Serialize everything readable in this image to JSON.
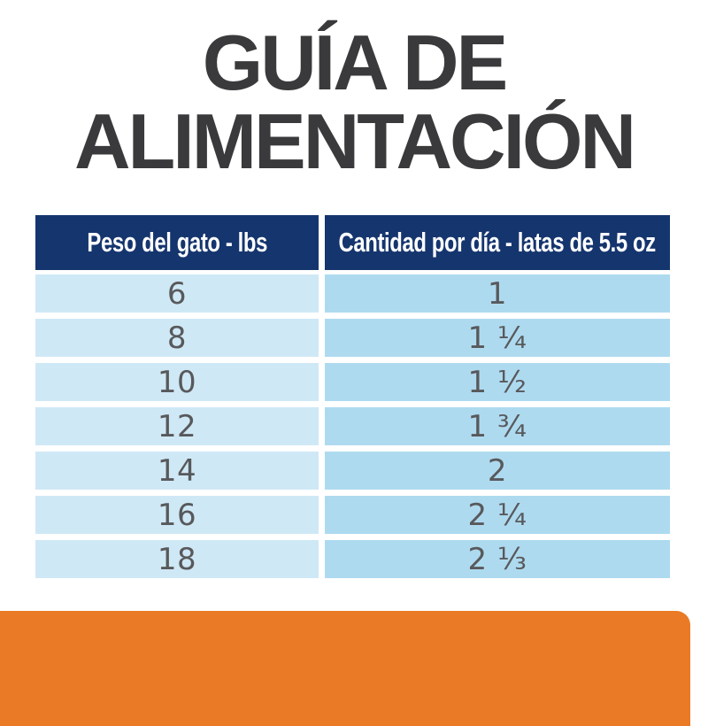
{
  "title": {
    "line1": "GUÍA DE",
    "line2": "ALIMENTACIÓN"
  },
  "table": {
    "headers": {
      "weight": "Peso del gato - lbs",
      "amount": "Cantidad por día - latas de 5.5 oz"
    },
    "rows": [
      {
        "weight": "6",
        "amount": "1"
      },
      {
        "weight": "8",
        "amount": "1 ¼"
      },
      {
        "weight": "10",
        "amount": "1 ½"
      },
      {
        "weight": "12",
        "amount": "1 ¾"
      },
      {
        "weight": "14",
        "amount": "2"
      },
      {
        "weight": "16",
        "amount": "2 ¼"
      },
      {
        "weight": "18",
        "amount": "2 ⅓"
      }
    ]
  },
  "colors": {
    "title_color": "#3a3a3c",
    "header_navy": "#15356e",
    "cell_left": "#cfe8f6",
    "cell_right": "#aedaf0",
    "number_gray": "#58595b",
    "brand_orange": "#ea7a26",
    "header_text": "#ffffff"
  }
}
